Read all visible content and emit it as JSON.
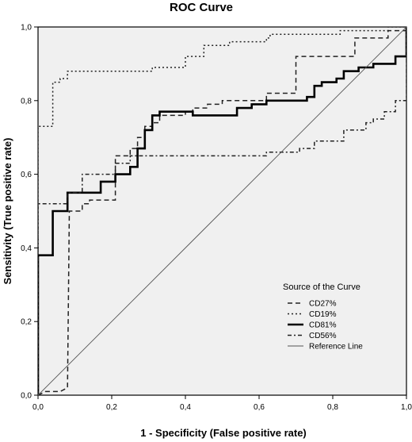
{
  "chart_data": {
    "type": "line",
    "title": "ROC Curve",
    "xlabel": "1 - Specificity (False positive rate)",
    "ylabel": "Sensitivity (True positive rate)",
    "xlim": [
      0,
      1
    ],
    "ylim": [
      0,
      1
    ],
    "x_ticks": [
      "0,0",
      "0,2",
      "0,4",
      "0,6",
      "0,8",
      "1,0"
    ],
    "y_ticks": [
      "0,0",
      "0,2",
      "0,4",
      "0,6",
      "0,8",
      "1,0"
    ],
    "grid": false,
    "background": "#f0f0f0",
    "legend": {
      "title": "Source of the Curve",
      "placement": "bottom-right"
    },
    "series": [
      {
        "name": "CD27%",
        "style": "dashed",
        "points": [
          [
            0,
            0
          ],
          [
            0.02,
            0.01
          ],
          [
            0.04,
            0.01
          ],
          [
            0.06,
            0.01
          ],
          [
            0.08,
            0.02
          ],
          [
            0.085,
            0.5
          ],
          [
            0.12,
            0.5
          ],
          [
            0.12,
            0.52
          ],
          [
            0.14,
            0.52
          ],
          [
            0.14,
            0.53
          ],
          [
            0.21,
            0.53
          ],
          [
            0.21,
            0.65
          ],
          [
            0.25,
            0.65
          ],
          [
            0.25,
            0.67
          ],
          [
            0.27,
            0.67
          ],
          [
            0.27,
            0.7
          ],
          [
            0.29,
            0.7
          ],
          [
            0.29,
            0.73
          ],
          [
            0.31,
            0.73
          ],
          [
            0.31,
            0.74
          ],
          [
            0.33,
            0.74
          ],
          [
            0.33,
            0.76
          ],
          [
            0.4,
            0.76
          ],
          [
            0.4,
            0.77
          ],
          [
            0.42,
            0.77
          ],
          [
            0.42,
            0.78
          ],
          [
            0.46,
            0.78
          ],
          [
            0.46,
            0.79
          ],
          [
            0.5,
            0.79
          ],
          [
            0.5,
            0.8
          ],
          [
            0.62,
            0.8
          ],
          [
            0.62,
            0.82
          ],
          [
            0.7,
            0.82
          ],
          [
            0.7,
            0.92
          ],
          [
            0.86,
            0.92
          ],
          [
            0.86,
            0.97
          ],
          [
            0.95,
            0.97
          ],
          [
            0.95,
            0.99
          ],
          [
            1,
            0.99
          ],
          [
            1,
            1
          ]
        ]
      },
      {
        "name": "CD19%",
        "style": "dotted",
        "points": [
          [
            0,
            0
          ],
          [
            0,
            0.73
          ],
          [
            0.04,
            0.73
          ],
          [
            0.04,
            0.85
          ],
          [
            0.06,
            0.85
          ],
          [
            0.06,
            0.86
          ],
          [
            0.08,
            0.86
          ],
          [
            0.08,
            0.88
          ],
          [
            0.31,
            0.88
          ],
          [
            0.31,
            0.89
          ],
          [
            0.4,
            0.89
          ],
          [
            0.4,
            0.92
          ],
          [
            0.45,
            0.92
          ],
          [
            0.45,
            0.95
          ],
          [
            0.52,
            0.95
          ],
          [
            0.52,
            0.96
          ],
          [
            0.62,
            0.96
          ],
          [
            0.62,
            0.97
          ],
          [
            0.63,
            0.97
          ],
          [
            0.63,
            0.98
          ],
          [
            0.82,
            0.98
          ],
          [
            0.82,
            0.99
          ],
          [
            0.95,
            0.99
          ],
          [
            0.95,
            1
          ],
          [
            1,
            1
          ]
        ]
      },
      {
        "name": "CD81%",
        "style": "solid-thick",
        "points": [
          [
            0,
            0
          ],
          [
            0,
            0.38
          ],
          [
            0.04,
            0.38
          ],
          [
            0.04,
            0.5
          ],
          [
            0.08,
            0.5
          ],
          [
            0.08,
            0.55
          ],
          [
            0.17,
            0.55
          ],
          [
            0.17,
            0.58
          ],
          [
            0.21,
            0.58
          ],
          [
            0.21,
            0.6
          ],
          [
            0.25,
            0.6
          ],
          [
            0.25,
            0.62
          ],
          [
            0.27,
            0.62
          ],
          [
            0.27,
            0.67
          ],
          [
            0.29,
            0.67
          ],
          [
            0.29,
            0.72
          ],
          [
            0.31,
            0.72
          ],
          [
            0.31,
            0.76
          ],
          [
            0.33,
            0.76
          ],
          [
            0.33,
            0.77
          ],
          [
            0.42,
            0.77
          ],
          [
            0.42,
            0.76
          ],
          [
            0.54,
            0.76
          ],
          [
            0.54,
            0.78
          ],
          [
            0.58,
            0.78
          ],
          [
            0.58,
            0.79
          ],
          [
            0.62,
            0.79
          ],
          [
            0.62,
            0.8
          ],
          [
            0.73,
            0.8
          ],
          [
            0.73,
            0.81
          ],
          [
            0.75,
            0.81
          ],
          [
            0.75,
            0.84
          ],
          [
            0.77,
            0.84
          ],
          [
            0.77,
            0.85
          ],
          [
            0.81,
            0.85
          ],
          [
            0.81,
            0.86
          ],
          [
            0.83,
            0.86
          ],
          [
            0.83,
            0.88
          ],
          [
            0.87,
            0.88
          ],
          [
            0.87,
            0.89
          ],
          [
            0.91,
            0.89
          ],
          [
            0.91,
            0.9
          ],
          [
            0.97,
            0.9
          ],
          [
            0.97,
            0.92
          ],
          [
            1,
            0.92
          ],
          [
            1,
            1
          ]
        ]
      },
      {
        "name": "CD56%",
        "style": "dash-dot",
        "points": [
          [
            0,
            0
          ],
          [
            0,
            0.52
          ],
          [
            0.08,
            0.52
          ],
          [
            0.08,
            0.55
          ],
          [
            0.12,
            0.55
          ],
          [
            0.12,
            0.6
          ],
          [
            0.21,
            0.6
          ],
          [
            0.21,
            0.63
          ],
          [
            0.25,
            0.63
          ],
          [
            0.25,
            0.65
          ],
          [
            0.62,
            0.65
          ],
          [
            0.62,
            0.66
          ],
          [
            0.71,
            0.66
          ],
          [
            0.71,
            0.67
          ],
          [
            0.75,
            0.67
          ],
          [
            0.75,
            0.69
          ],
          [
            0.83,
            0.69
          ],
          [
            0.83,
            0.72
          ],
          [
            0.89,
            0.72
          ],
          [
            0.89,
            0.74
          ],
          [
            0.91,
            0.74
          ],
          [
            0.91,
            0.75
          ],
          [
            0.94,
            0.75
          ],
          [
            0.94,
            0.77
          ],
          [
            0.97,
            0.77
          ],
          [
            0.97,
            0.8
          ],
          [
            1,
            0.8
          ],
          [
            1,
            1
          ]
        ]
      },
      {
        "name": "Reference Line",
        "style": "thin",
        "points": [
          [
            0,
            0
          ],
          [
            1,
            1
          ]
        ]
      }
    ]
  }
}
